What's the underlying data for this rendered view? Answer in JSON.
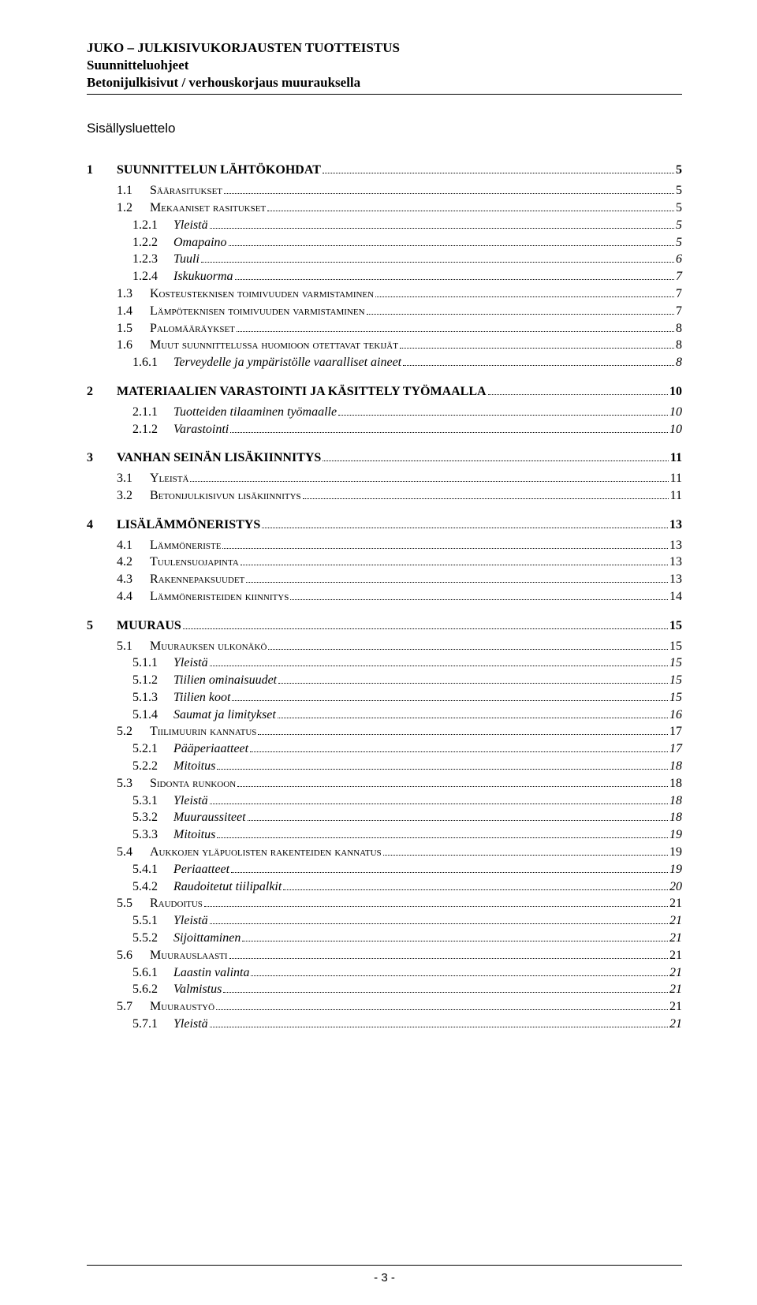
{
  "header": {
    "line1": "JUKO – JULKISIVUKORJAUSTEN TUOTTEISTUS",
    "line2": "Suunnitteluohjeet",
    "line3": "Betonijulkisivut / verhouskorjaus muurauksella"
  },
  "toc_title": "Sisällysluettelo",
  "footer_page": "- 3 -",
  "entries": [
    {
      "lvl": 1,
      "num": "1",
      "label": "SUUNNITTELUN LÄHTÖKOHDAT",
      "page": "5"
    },
    {
      "lvl": 2,
      "num": "1.1",
      "label": "Säärasitukset",
      "page": "5",
      "smallcaps": true
    },
    {
      "lvl": 2,
      "num": "1.2",
      "label": "Mekaaniset rasitukset",
      "page": "5",
      "smallcaps": true
    },
    {
      "lvl": 3,
      "num": "1.2.1",
      "label": "Yleistä",
      "page": "5"
    },
    {
      "lvl": 3,
      "num": "1.2.2",
      "label": "Omapaino",
      "page": "5"
    },
    {
      "lvl": 3,
      "num": "1.2.3",
      "label": "Tuuli",
      "page": "6"
    },
    {
      "lvl": 3,
      "num": "1.2.4",
      "label": "Iskukuorma",
      "page": "7"
    },
    {
      "lvl": 2,
      "num": "1.3",
      "label": "Kosteusteknisen toimivuuden varmistaminen",
      "page": "7",
      "smallcaps": true
    },
    {
      "lvl": 2,
      "num": "1.4",
      "label": "Lämpöteknisen toimivuuden varmistaminen",
      "page": "7",
      "smallcaps": true
    },
    {
      "lvl": 2,
      "num": "1.5",
      "label": "Palomääräykset",
      "page": "8",
      "smallcaps": true
    },
    {
      "lvl": 2,
      "num": "1.6",
      "label": "Muut suunnittelussa huomioon otettavat tekijät",
      "page": "8",
      "smallcaps": true
    },
    {
      "lvl": 3,
      "num": "1.6.1",
      "label": "Terveydelle ja ympäristölle vaaralliset aineet",
      "page": "8"
    },
    {
      "lvl": 1,
      "num": "2",
      "label": "MATERIAALIEN VARASTOINTI JA KÄSITTELY TYÖMAALLA",
      "page": "10"
    },
    {
      "lvl": 3,
      "num": "2.1.1",
      "label": "Tuotteiden tilaaminen työmaalle",
      "page": "10"
    },
    {
      "lvl": 3,
      "num": "2.1.2",
      "label": "Varastointi",
      "page": "10"
    },
    {
      "lvl": 1,
      "num": "3",
      "label": "VANHAN SEINÄN LISÄKIINNITYS",
      "page": "11"
    },
    {
      "lvl": 2,
      "num": "3.1",
      "label": "Yleistä",
      "page": "11",
      "smallcaps": true
    },
    {
      "lvl": 2,
      "num": "3.2",
      "label": "Betonijulkisivun lisäkiinnitys",
      "page": "11",
      "smallcaps": true
    },
    {
      "lvl": 1,
      "num": "4",
      "label": "LISÄLÄMMÖNERISTYS",
      "page": "13"
    },
    {
      "lvl": 2,
      "num": "4.1",
      "label": "Lämmöneriste",
      "page": "13",
      "smallcaps": true
    },
    {
      "lvl": 2,
      "num": "4.2",
      "label": "Tuulensuojapinta",
      "page": "13",
      "smallcaps": true
    },
    {
      "lvl": 2,
      "num": "4.3",
      "label": "Rakennepaksuudet",
      "page": "13",
      "smallcaps": true
    },
    {
      "lvl": 2,
      "num": "4.4",
      "label": "Lämmöneristeiden kiinnitys",
      "page": "14",
      "smallcaps": true
    },
    {
      "lvl": 1,
      "num": "5",
      "label": "MUURAUS",
      "page": "15"
    },
    {
      "lvl": 2,
      "num": "5.1",
      "label": "Muurauksen ulkonäkö",
      "page": "15",
      "smallcaps": true
    },
    {
      "lvl": 3,
      "num": "5.1.1",
      "label": "Yleistä",
      "page": "15"
    },
    {
      "lvl": 3,
      "num": "5.1.2",
      "label": "Tiilien ominaisuudet",
      "page": "15"
    },
    {
      "lvl": 3,
      "num": "5.1.3",
      "label": "Tiilien koot",
      "page": "15"
    },
    {
      "lvl": 3,
      "num": "5.1.4",
      "label": "Saumat ja limitykset",
      "page": "16"
    },
    {
      "lvl": 2,
      "num": "5.2",
      "label": "Tiilimuurin kannatus",
      "page": "17",
      "smallcaps": true
    },
    {
      "lvl": 3,
      "num": "5.2.1",
      "label": "Pääperiaatteet",
      "page": "17"
    },
    {
      "lvl": 3,
      "num": "5.2.2",
      "label": "Mitoitus",
      "page": "18"
    },
    {
      "lvl": 2,
      "num": "5.3",
      "label": "Sidonta runkoon",
      "page": "18",
      "smallcaps": true
    },
    {
      "lvl": 3,
      "num": "5.3.1",
      "label": "Yleistä",
      "page": "18"
    },
    {
      "lvl": 3,
      "num": "5.3.2",
      "label": "Muuraussiteet",
      "page": "18"
    },
    {
      "lvl": 3,
      "num": "5.3.3",
      "label": "Mitoitus",
      "page": "19"
    },
    {
      "lvl": 2,
      "num": "5.4",
      "label": "Aukkojen yläpuolisten rakenteiden kannatus",
      "page": "19",
      "smallcaps": true
    },
    {
      "lvl": 3,
      "num": "5.4.1",
      "label": "Periaatteet",
      "page": "19"
    },
    {
      "lvl": 3,
      "num": "5.4.2",
      "label": "Raudoitetut tiilipalkit",
      "page": "20"
    },
    {
      "lvl": 2,
      "num": "5.5",
      "label": "Raudoitus",
      "page": "21",
      "smallcaps": true
    },
    {
      "lvl": 3,
      "num": "5.5.1",
      "label": "Yleistä",
      "page": "21"
    },
    {
      "lvl": 3,
      "num": "5.5.2",
      "label": "Sijoittaminen",
      "page": "21"
    },
    {
      "lvl": 2,
      "num": "5.6",
      "label": "Muurauslaasti",
      "page": "21",
      "smallcaps": true
    },
    {
      "lvl": 3,
      "num": "5.6.1",
      "label": "Laastin valinta",
      "page": "21"
    },
    {
      "lvl": 3,
      "num": "5.6.2",
      "label": "Valmistus",
      "page": "21"
    },
    {
      "lvl": 2,
      "num": "5.7",
      "label": "Muuraustyö",
      "page": "21",
      "smallcaps": true
    },
    {
      "lvl": 3,
      "num": "5.7.1",
      "label": "Yleistä",
      "page": "21"
    }
  ]
}
